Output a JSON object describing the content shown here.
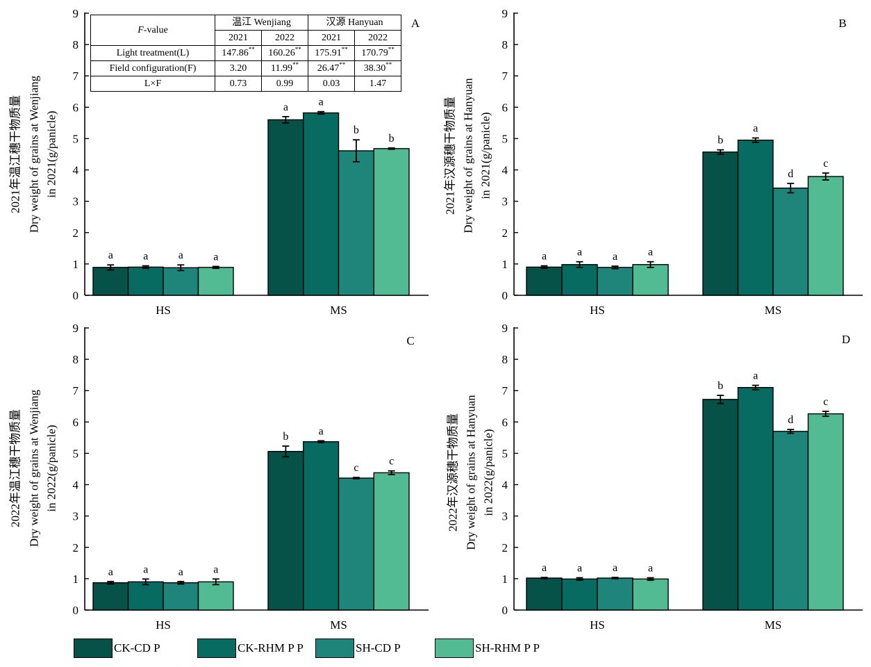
{
  "colors": {
    "CK-CD P": "#075248",
    "CK-RHM P P": "#086b61",
    "SH-CD P": "#1f857b",
    "SH-RHM P P": "#52bb94"
  },
  "legend": [
    "CK-CD P",
    "CK-RHM P P",
    "SH-CD P",
    "SH-RHM P P"
  ],
  "ftable": {
    "header_label": "F-value",
    "header_label_italic": "F",
    "header_label_rest": "-value",
    "loc1": "温江 Wenjiang",
    "loc2": "汉源 Hanyuan",
    "years": [
      "2021",
      "2022",
      "2021",
      "2022"
    ],
    "rows": [
      {
        "label": "Light treatment(L)",
        "vals": [
          "147.86",
          "160.26",
          "175.91",
          "170.79"
        ],
        "sups": [
          "**",
          "**",
          "**",
          "**"
        ]
      },
      {
        "label": "Field configuration(F)",
        "vals": [
          "3.20",
          "11.99",
          "26.47",
          "38.30"
        ],
        "sups": [
          "",
          "**",
          "**",
          "**"
        ]
      },
      {
        "label": "L×F",
        "vals": [
          "0.73",
          "0.99",
          "0.03",
          "1.47"
        ],
        "sups": [
          "",
          "",
          "",
          ""
        ]
      }
    ]
  },
  "chart_data": [
    {
      "type": "bar",
      "panel": "A",
      "ylabel": [
        "2021年温江穗干物质量",
        "Dry weight of grains at    Wenjiang",
        "in 2021(g/panicle)"
      ],
      "ylim": [
        0,
        9
      ],
      "yticks": [
        "0",
        "1",
        "2",
        "3",
        "4",
        "5",
        "6",
        "7",
        "8",
        "9"
      ],
      "categories": [
        "HS",
        "MS"
      ],
      "series": [
        {
          "name": "CK-CD P",
          "values": [
            0.89,
            5.6
          ],
          "errors": [
            0.08,
            0.1
          ],
          "letters": [
            "a",
            "a"
          ]
        },
        {
          "name": "CK-RHM P P",
          "values": [
            0.9,
            5.82
          ],
          "errors": [
            0.04,
            0.04
          ],
          "letters": [
            "a",
            "a"
          ]
        },
        {
          "name": "SH-CD P",
          "values": [
            0.88,
            4.61
          ],
          "errors": [
            0.09,
            0.35
          ],
          "letters": [
            "a",
            "b"
          ]
        },
        {
          "name": "SH-RHM P P",
          "values": [
            0.89,
            4.68
          ],
          "errors": [
            0.03,
            0.02
          ],
          "letters": [
            "a",
            "b"
          ]
        }
      ]
    },
    {
      "type": "bar",
      "panel": "B",
      "ylabel": [
        "2021年汉源穗干物质量",
        "Dry weight of grains at Hanyuan",
        "in 2021(g/panicle)"
      ],
      "ylim": [
        0,
        9
      ],
      "yticks": [
        "0",
        "1",
        "2",
        "3",
        "4",
        "5",
        "6",
        "7",
        "8",
        "9"
      ],
      "categories": [
        "HS",
        "MS"
      ],
      "series": [
        {
          "name": "CK-CD P",
          "values": [
            0.9,
            4.57
          ],
          "errors": [
            0.04,
            0.07
          ],
          "letters": [
            "a",
            "b"
          ]
        },
        {
          "name": "CK-RHM P P",
          "values": [
            0.98,
            4.95
          ],
          "errors": [
            0.09,
            0.07
          ],
          "letters": [
            "a",
            "a"
          ]
        },
        {
          "name": "SH-CD P",
          "values": [
            0.89,
            3.42
          ],
          "errors": [
            0.04,
            0.15
          ],
          "letters": [
            "a",
            "d"
          ]
        },
        {
          "name": "SH-RHM P P",
          "values": [
            0.98,
            3.79
          ],
          "errors": [
            0.09,
            0.11
          ],
          "letters": [
            "a",
            "c"
          ]
        }
      ]
    },
    {
      "type": "bar",
      "panel": "C",
      "ylabel": [
        "2022年温江穗干物质量",
        "Dry weight of grains at    Wenjiang",
        "in 2022(g/panicle)"
      ],
      "ylim": [
        0,
        9
      ],
      "yticks": [
        "0",
        "1",
        "2",
        "3",
        "4",
        "5",
        "6",
        "7",
        "8",
        "9"
      ],
      "categories": [
        "HS",
        "MS"
      ],
      "series": [
        {
          "name": "CK-CD P",
          "values": [
            0.87,
            5.06
          ],
          "errors": [
            0.04,
            0.17
          ],
          "letters": [
            "a",
            "b"
          ]
        },
        {
          "name": "CK-RHM P P",
          "values": [
            0.9,
            5.37
          ],
          "errors": [
            0.09,
            0.03
          ],
          "letters": [
            "a",
            "a"
          ]
        },
        {
          "name": "SH-CD P",
          "values": [
            0.87,
            4.21
          ],
          "errors": [
            0.04,
            0.02
          ],
          "letters": [
            "a",
            "c"
          ]
        },
        {
          "name": "SH-RHM P P",
          "values": [
            0.9,
            4.38
          ],
          "errors": [
            0.09,
            0.06
          ],
          "letters": [
            "a",
            "c"
          ]
        }
      ]
    },
    {
      "type": "bar",
      "panel": "D",
      "ylabel": [
        "2022年汉源穗干物质量",
        "Dry weight of grains at Hanyuan",
        "in 2022(g/panicle)"
      ],
      "ylim": [
        0,
        9
      ],
      "yticks": [
        "0",
        "1",
        "2",
        "3",
        "4",
        "5",
        "6",
        "7",
        "8",
        "9"
      ],
      "categories": [
        "HS",
        "MS"
      ],
      "series": [
        {
          "name": "CK-CD P",
          "values": [
            1.02,
            6.72
          ],
          "errors": [
            0.02,
            0.13
          ],
          "letters": [
            "a",
            "b"
          ]
        },
        {
          "name": "CK-RHM P P",
          "values": [
            0.99,
            7.1
          ],
          "errors": [
            0.04,
            0.07
          ],
          "letters": [
            "a",
            "a"
          ]
        },
        {
          "name": "SH-CD P",
          "values": [
            1.02,
            5.7
          ],
          "errors": [
            0.02,
            0.06
          ],
          "letters": [
            "a",
            "d"
          ]
        },
        {
          "name": "SH-RHM P P",
          "values": [
            0.99,
            6.26
          ],
          "errors": [
            0.04,
            0.08
          ],
          "letters": [
            "a",
            "c"
          ]
        }
      ]
    }
  ]
}
